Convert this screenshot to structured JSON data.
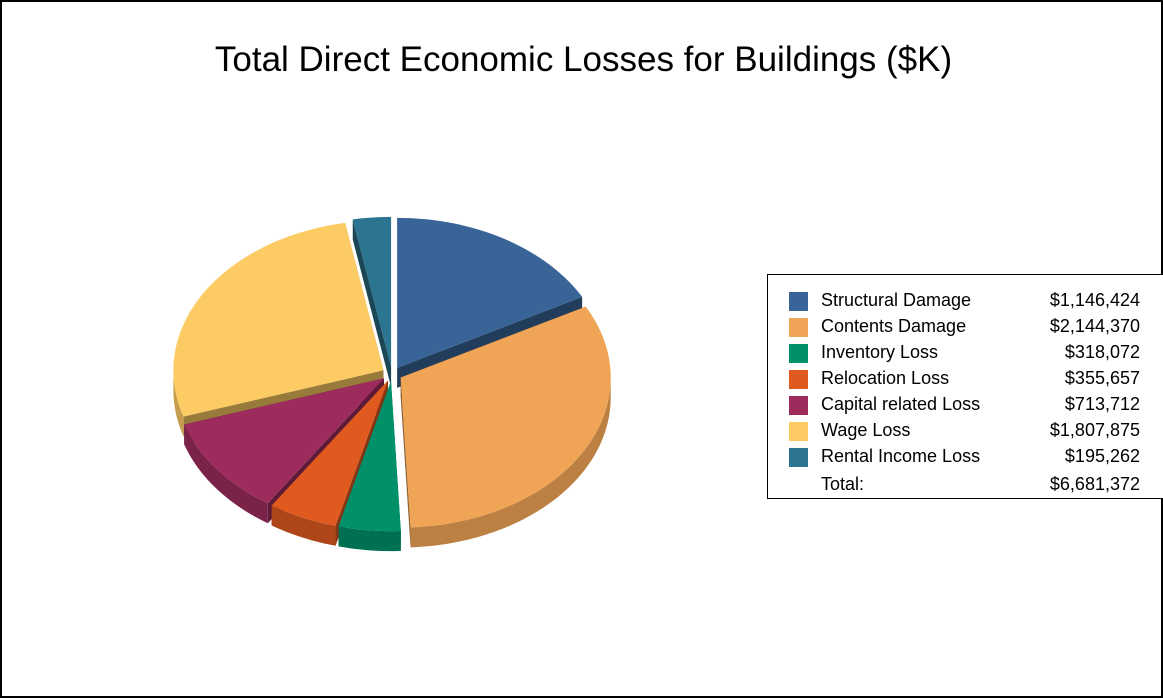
{
  "chart_data": {
    "type": "pie",
    "title": "Total Direct Economic Losses for Buildings ($K)",
    "legend_position": "right",
    "exploded": true,
    "style_3d": true,
    "slices": [
      {
        "label": "Structural Damage",
        "value": 1146424,
        "value_text": "$1,146,424",
        "color": "#386498"
      },
      {
        "label": "Contents Damage",
        "value": 2144370,
        "value_text": "$2,144,370",
        "color": "#F0A455"
      },
      {
        "label": "Inventory Loss",
        "value": 318072,
        "value_text": "$318,072",
        "color": "#00906A"
      },
      {
        "label": "Relocation Loss",
        "value": 355657,
        "value_text": "$355,657",
        "color": "#E05A20"
      },
      {
        "label": "Capital related Loss",
        "value": 713712,
        "value_text": "$713,712",
        "color": "#9E2B5D"
      },
      {
        "label": "Wage Loss",
        "value": 1807875,
        "value_text": "$1,807,875",
        "color": "#FDCB63"
      },
      {
        "label": "Rental Income Loss",
        "value": 195262,
        "value_text": "$195,262",
        "color": "#2C7590"
      }
    ],
    "total_label": "Total:",
    "total_text": "$6,681,372"
  }
}
